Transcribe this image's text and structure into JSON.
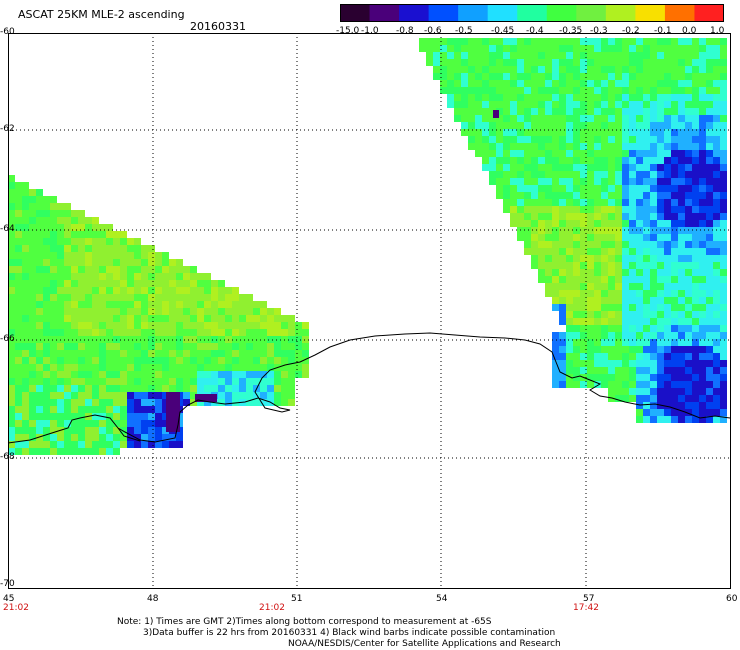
{
  "header": {
    "title": "ASCAT 25KM MLE-2 ascending",
    "date": "20160331"
  },
  "colorbar": {
    "labels": [
      "-15.0",
      "-1.0",
      "-0.8",
      "-0.6",
      "-0.5",
      "-0.45",
      "-0.4",
      "-0.35",
      "-0.3",
      "-0.2",
      "-0.1",
      "0.0",
      "1.0"
    ],
    "colors": [
      "#2a0030",
      "#4a007a",
      "#1a10d0",
      "#0050ff",
      "#10a0ff",
      "#20e0ff",
      "#20ffa0",
      "#40ff40",
      "#70f040",
      "#b0f020",
      "#f8e000",
      "#ff7000",
      "#ff2020"
    ]
  },
  "map": {
    "y_labels": [
      "-60",
      "-62",
      "-64",
      "-66",
      "-68",
      "-70"
    ],
    "x_labels": [
      "45",
      "48",
      "51",
      "54",
      "57",
      "60"
    ],
    "time_labels": [
      "21:02",
      "21:02",
      "17:42"
    ],
    "palette": {
      "water": "#ffffff",
      "coast": "#000000",
      "grid": "#000000"
    }
  },
  "notes": {
    "line1": "Note: 1) Times are GMT 2)Times along bottom correspond to measurement at -65S",
    "line2": "3)Data buffer is 22 hrs from 20160331 4) Black wind barbs indicate possible contamination",
    "line3": "NOAA/NESDIS/Center for Satellite Applications and Research"
  }
}
